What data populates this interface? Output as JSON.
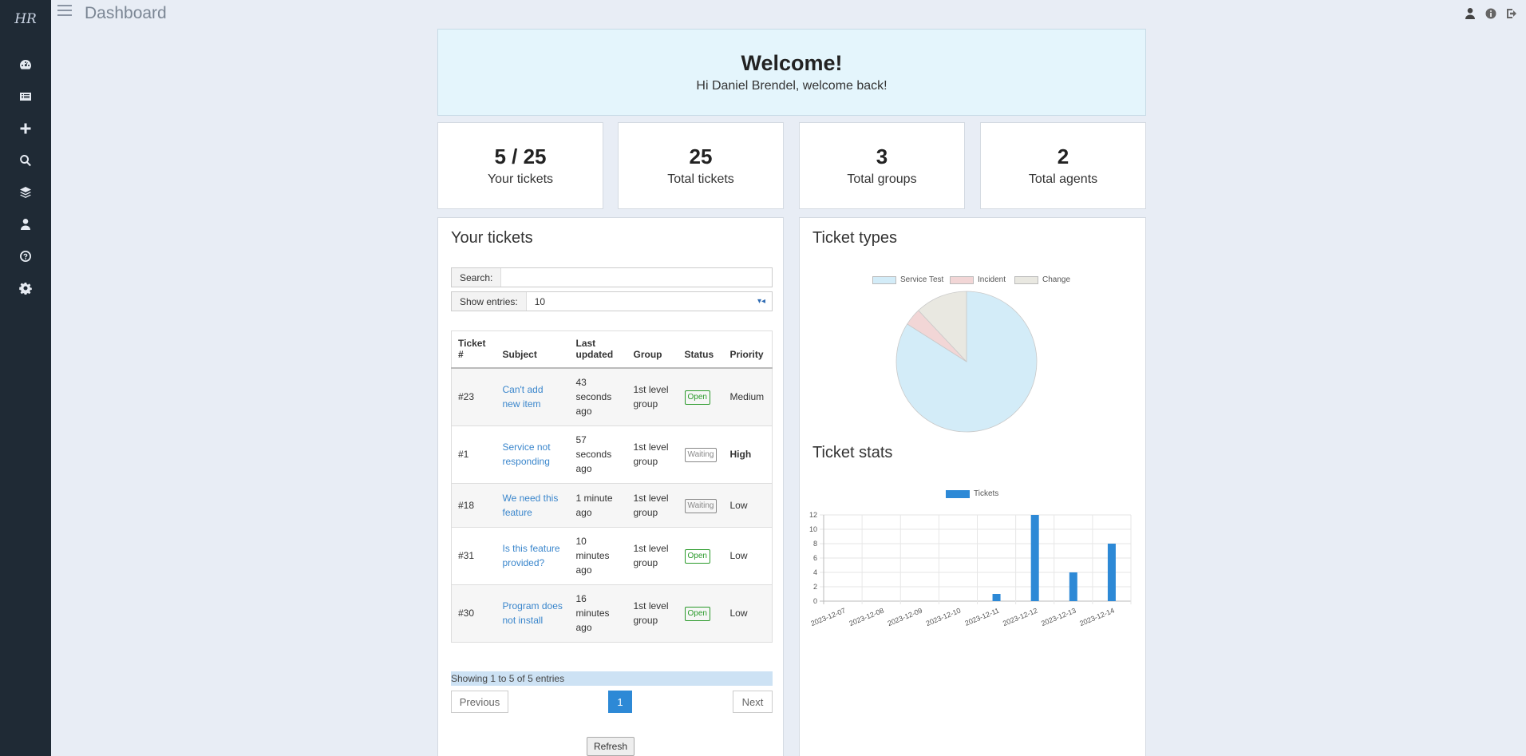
{
  "app": {
    "logo": "HR",
    "page_title": "Dashboard"
  },
  "sidebar": {
    "items": [
      {
        "icon": "dashboard-icon"
      },
      {
        "icon": "list-icon"
      },
      {
        "icon": "plus-icon"
      },
      {
        "icon": "search-icon"
      },
      {
        "icon": "layers-icon"
      },
      {
        "icon": "user-icon"
      },
      {
        "icon": "help-icon"
      },
      {
        "icon": "gear-icon"
      }
    ]
  },
  "topbar": {
    "icons": [
      "user-icon",
      "info-icon",
      "logout-icon"
    ]
  },
  "welcome": {
    "title": "Welcome!",
    "message": "Hi Daniel Brendel, welcome back!"
  },
  "stats": [
    {
      "value": "5 / 25",
      "label": "Your tickets"
    },
    {
      "value": "25",
      "label": "Total tickets"
    },
    {
      "value": "3",
      "label": "Total groups"
    },
    {
      "value": "2",
      "label": "Total agents"
    }
  ],
  "your_tickets": {
    "title": "Your tickets",
    "search_label": "Search:",
    "search_value": "",
    "entries_label": "Show entries:",
    "entries_value": "10",
    "columns": [
      "Ticket #",
      "Subject",
      "Last updated",
      "Group",
      "Status",
      "Priority"
    ],
    "rows": [
      {
        "id": "#23",
        "subject": "Can't add new item",
        "updated": "43 seconds ago",
        "group": "1st level group",
        "status": "Open",
        "priority": "Medium"
      },
      {
        "id": "#1",
        "subject": "Service not responding",
        "updated": "57 seconds ago",
        "group": "1st level group",
        "status": "Waiting",
        "priority": "High"
      },
      {
        "id": "#18",
        "subject": "We need this feature",
        "updated": "1 minute ago",
        "group": "1st level group",
        "status": "Waiting",
        "priority": "Low"
      },
      {
        "id": "#31",
        "subject": "Is this feature provided?",
        "updated": "10 minutes ago",
        "group": "1st level group",
        "status": "Open",
        "priority": "Low"
      },
      {
        "id": "#30",
        "subject": "Program does not install",
        "updated": "16 minutes ago",
        "group": "1st level group",
        "status": "Open",
        "priority": "Low"
      }
    ],
    "showing": "Showing 1 to 5 of 5 entries",
    "prev_label": "Previous",
    "page": "1",
    "next_label": "Next",
    "refresh_label": "Refresh"
  },
  "ticket_types": {
    "title": "Ticket types"
  },
  "ticket_stats": {
    "title": "Ticket stats"
  },
  "colors": {
    "sidebar": "#1f2a35",
    "accent": "#2d89d6",
    "open": "#2a9a2a"
  },
  "chart_data": [
    {
      "type": "pie",
      "labels": [
        "Service Test",
        "Incident",
        "Change"
      ],
      "values": [
        21,
        1,
        3
      ],
      "colors": [
        "#d3ecf8",
        "#f2d6d6",
        "#e9e8e1"
      ],
      "legend": "top"
    },
    {
      "type": "bar",
      "categories": [
        "2023-12-07",
        "2023-12-08",
        "2023-12-09",
        "2023-12-10",
        "2023-12-11",
        "2023-12-12",
        "2023-12-13",
        "2023-12-14"
      ],
      "series": [
        {
          "name": "Tickets",
          "values": [
            0,
            0,
            0,
            0,
            1,
            12,
            4,
            8
          ]
        }
      ],
      "ylim": [
        0,
        12
      ],
      "yticks": [
        0,
        2,
        4,
        6,
        8,
        10,
        12
      ],
      "legend": "top",
      "grid": true,
      "color": "#2d89d6"
    }
  ]
}
